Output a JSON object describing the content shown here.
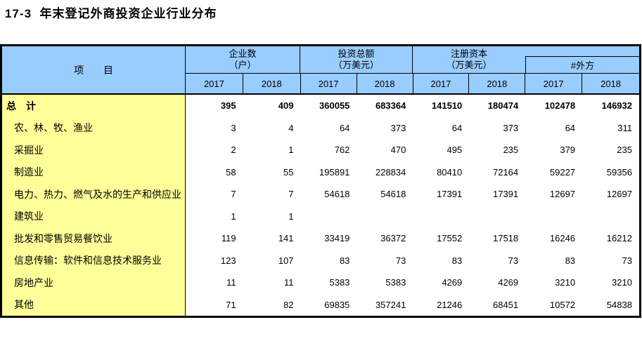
{
  "title": "17-3  年末登记外商投资企业行业分布",
  "colors": {
    "header_bg": "#99CCFF",
    "label_column_bg": "#FFFF99",
    "border": "#000000",
    "body_bg": "#FFFFFF"
  },
  "header": {
    "item_label": "项　　目",
    "groups": [
      {
        "line1": "企业数",
        "line2": "（户）"
      },
      {
        "line1": "投资总额",
        "line2": "（万美元）"
      },
      {
        "line1": "注册资本",
        "line2": "（万美元）"
      },
      {
        "line1": "#外方",
        "line2": ""
      }
    ],
    "years": [
      "2017",
      "2018",
      "2017",
      "2018",
      "2017",
      "2018",
      "2017",
      "2018"
    ]
  },
  "rows": [
    {
      "label": "总　计",
      "bold": true,
      "values": [
        "395",
        "409",
        "360055",
        "683364",
        "141510",
        "180474",
        "102478",
        "146932"
      ]
    },
    {
      "label": "农、林、牧、渔业",
      "bold": false,
      "values": [
        "3",
        "4",
        "64",
        "373",
        "64",
        "373",
        "64",
        "311"
      ]
    },
    {
      "label": "采掘业",
      "bold": false,
      "values": [
        "2",
        "1",
        "762",
        "470",
        "495",
        "235",
        "379",
        "235"
      ]
    },
    {
      "label": "制造业",
      "bold": false,
      "values": [
        "58",
        "55",
        "195891",
        "228834",
        "80410",
        "72164",
        "59227",
        "59356"
      ]
    },
    {
      "label": "电力、热力、燃气及水的生产和供应业",
      "bold": false,
      "values": [
        "7",
        "7",
        "54618",
        "54618",
        "17391",
        "17391",
        "12697",
        "12697"
      ]
    },
    {
      "label": "建筑业",
      "bold": false,
      "values": [
        "1",
        "1",
        "",
        "",
        "",
        "",
        "",
        ""
      ]
    },
    {
      "label": "批发和零售贸易餐饮业",
      "bold": false,
      "values": [
        "119",
        "141",
        "33419",
        "36372",
        "17552",
        "17518",
        "16246",
        "16212"
      ]
    },
    {
      "label": "信息传输：软件和信息技术服务业",
      "bold": false,
      "values": [
        "123",
        "107",
        "83",
        "73",
        "83",
        "73",
        "83",
        "73"
      ]
    },
    {
      "label": "房地产业",
      "bold": false,
      "values": [
        "11",
        "11",
        "5383",
        "5383",
        "4269",
        "4269",
        "3210",
        "3210"
      ]
    },
    {
      "label": "其他",
      "bold": false,
      "values": [
        "71",
        "82",
        "69835",
        "357241",
        "21246",
        "68451",
        "10572",
        "54838"
      ]
    }
  ]
}
